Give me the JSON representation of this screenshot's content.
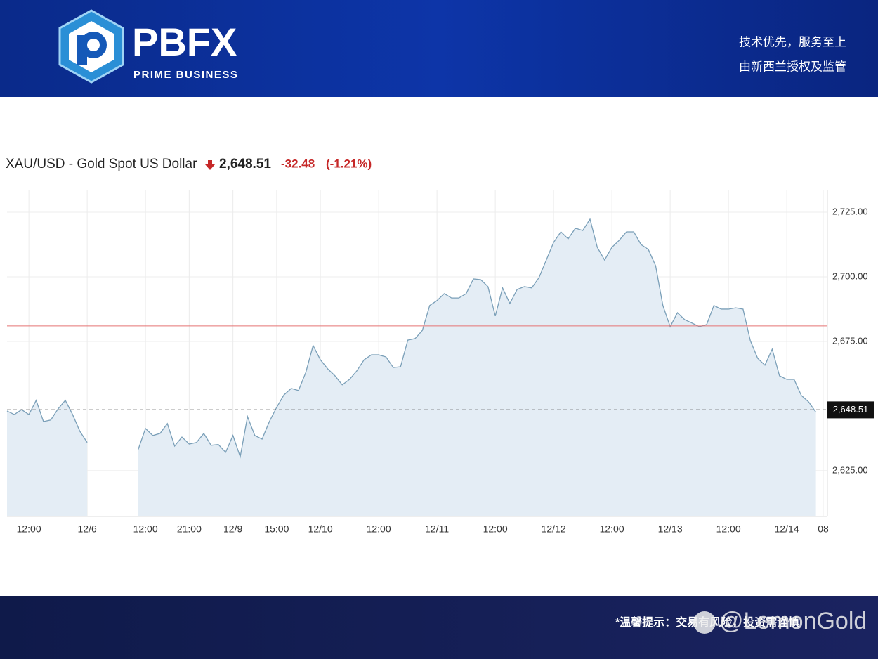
{
  "header": {
    "logo": "PBFX",
    "logo_sub": "PRIME BUSINESS",
    "slogan": [
      "技术优先，服务至上",
      "由新西兰授权及监管"
    ]
  },
  "chart_data": {
    "type": "line",
    "title": "XAU/USD - Gold Spot US Dollar",
    "price": {
      "value": 2648.51,
      "label": "2,648.51"
    },
    "change": "-32.48",
    "change_pct": "(-1.21%)",
    "prev_close": 2680.99,
    "categories": [
      null,
      null,
      null,
      "12:00",
      null,
      null,
      null,
      null,
      null,
      null,
      null,
      "12/6",
      null,
      null,
      null,
      null,
      null,
      null,
      null,
      "12:00",
      null,
      null,
      null,
      null,
      null,
      "21:00",
      null,
      null,
      null,
      null,
      null,
      "12/9",
      null,
      null,
      null,
      null,
      null,
      "15:00",
      null,
      null,
      null,
      null,
      null,
      "12/10",
      null,
      null,
      null,
      null,
      null,
      null,
      null,
      "12:00",
      null,
      null,
      null,
      null,
      null,
      null,
      null,
      "12/11",
      null,
      null,
      null,
      null,
      null,
      null,
      null,
      "12:00",
      null,
      null,
      null,
      null,
      null,
      null,
      null,
      "12/12",
      null,
      null,
      null,
      null,
      null,
      null,
      null,
      "12:00",
      null,
      null,
      null,
      null,
      null,
      null,
      null,
      "12/13",
      null,
      null,
      null,
      null,
      null,
      null,
      null,
      "12:00",
      null,
      null,
      null,
      null,
      null,
      null,
      null,
      "12/14",
      null,
      null,
      null,
      null,
      "08"
    ],
    "series": [
      {
        "name": "XAU/USD",
        "color": "#7a9fb8",
        "values": [
          2648.1,
          2646.7,
          2648.6,
          2646.7,
          2652.2,
          2644.0,
          2644.6,
          2648.9,
          2652.2,
          2646.7,
          2640.2,
          2635.9,
          null,
          null,
          null,
          null,
          null,
          null,
          2633.2,
          2641.3,
          2638.6,
          2639.4,
          2643.2,
          2634.5,
          2638.0,
          2635.3,
          2635.9,
          2639.4,
          2634.8,
          2635.1,
          2632.1,
          2638.6,
          2630.4,
          2645.9,
          2638.6,
          2637.2,
          2644.0,
          2649.5,
          2654.3,
          2656.8,
          2656.0,
          2663.0,
          2673.4,
          2667.9,
          2664.4,
          2661.7,
          2658.2,
          2660.3,
          2663.6,
          2667.9,
          2669.8,
          2669.8,
          2669.0,
          2664.9,
          2665.2,
          2675.5,
          2676.1,
          2679.3,
          2688.9,
          2690.8,
          2693.5,
          2691.8,
          2691.8,
          2693.5,
          2699.2,
          2698.9,
          2696.2,
          2684.8,
          2695.7,
          2689.7,
          2695.1,
          2696.2,
          2695.7,
          2699.7,
          2706.5,
          2713.3,
          2717.4,
          2714.7,
          2718.8,
          2717.9,
          2722.3,
          2711.4,
          2706.5,
          2711.4,
          2714.1,
          2717.4,
          2717.4,
          2712.5,
          2710.6,
          2704.3,
          2688.9,
          2680.7,
          2686.1,
          2683.4,
          2682.1,
          2680.7,
          2681.5,
          2688.9,
          2687.5,
          2687.5,
          2688.0,
          2687.5,
          2675.3,
          2668.5,
          2665.8,
          2672.0,
          2661.7,
          2660.3,
          2660.3,
          2654.1,
          2651.6,
          2647.6,
          null
        ]
      }
    ],
    "ylim": [
      2607.3,
      2733.7
    ],
    "yticks": [
      {
        "value": 2625,
        "label": "2,625.00"
      },
      {
        "value": 2675,
        "label": "2,675.00"
      },
      {
        "value": 2700,
        "label": "2,700.00"
      },
      {
        "value": 2725,
        "label": "2,725.00"
      }
    ],
    "grid": true
  },
  "footer": {
    "notice": "*温馨提示：交易有风险，投资需谨慎",
    "watermark": "@LemonGold"
  }
}
